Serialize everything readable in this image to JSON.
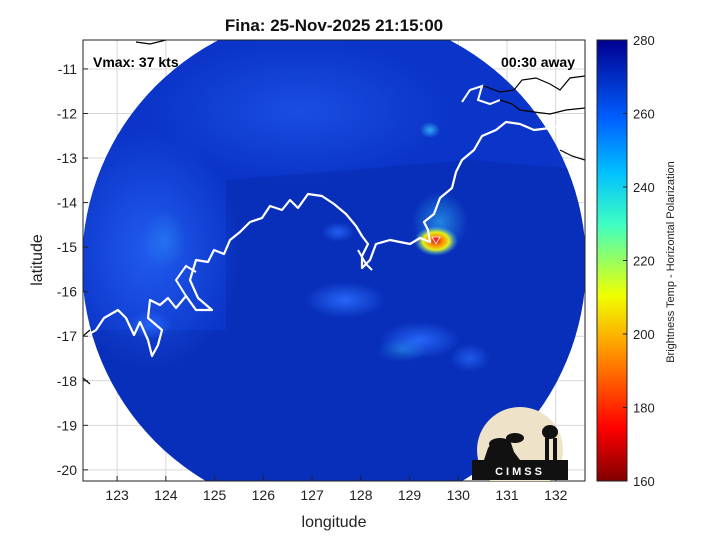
{
  "title": "Fina: 25-Nov-2025 21:15:00",
  "vmax_label": "Vmax: 37 kts",
  "time_label": "00:30 away",
  "logo_text": "CIMSS",
  "chart_data": {
    "type": "heatmap",
    "xlabel": "longitude",
    "ylabel": "latitude",
    "xlim": [
      122.3,
      132.6
    ],
    "ylim": [
      -20.25,
      -10.35
    ],
    "x_ticks": [
      "123",
      "124",
      "125",
      "126",
      "127",
      "128",
      "129",
      "130",
      "131",
      "132"
    ],
    "y_ticks": [
      "-11",
      "-12",
      "-13",
      "-14",
      "-15",
      "-16",
      "-17",
      "-18",
      "-19",
      "-20"
    ],
    "x_tick_values": [
      123,
      124,
      125,
      126,
      127,
      128,
      129,
      130,
      131,
      132
    ],
    "y_tick_values": [
      -11,
      -12,
      -13,
      -14,
      -15,
      -16,
      -17,
      -18,
      -19,
      -20
    ],
    "grid": true,
    "swath_center": [
      127.47,
      -15.3
    ],
    "swath_radius_deg": 5.2,
    "storm_center": [
      129.5,
      -14.95
    ],
    "colorbar": {
      "label": "Brightness Temp - Horizontal Polarization",
      "range": [
        160,
        280
      ],
      "ticks": [
        "280",
        "260",
        "240",
        "220",
        "200",
        "180",
        "160"
      ],
      "tick_values": [
        280,
        260,
        240,
        220,
        200,
        180,
        160
      ]
    }
  }
}
